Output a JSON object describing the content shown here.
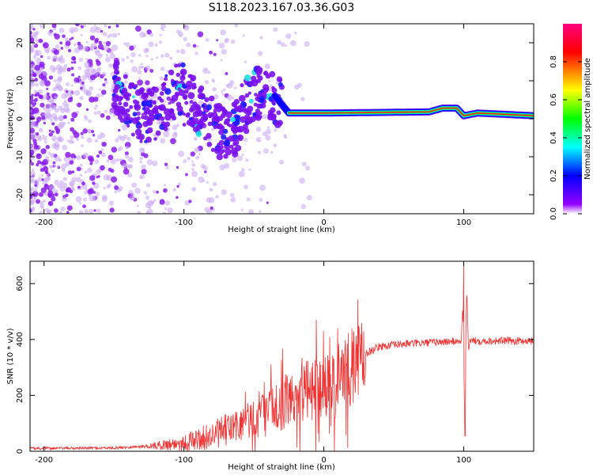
{
  "title": "S118.2023.167.03.36.G03",
  "chart_data": [
    {
      "type": "heatmap",
      "xlabel": "Height of straight line (km)",
      "ylabel": "Frequency (Hz)",
      "xlim": [
        -210,
        150
      ],
      "ylim": [
        -25,
        25
      ],
      "xticks": [
        -200,
        -100,
        0,
        100
      ],
      "yticks": [
        -20,
        -10,
        0,
        10,
        20
      ],
      "colorbar": {
        "label": "Normalized spectral amplitude",
        "range": [
          0,
          1
        ],
        "ticks": [
          "0.0",
          "0.2",
          "0.4",
          "0.6",
          "0.8"
        ],
        "tick_values": [
          0,
          0.2,
          0.4,
          0.6,
          0.8
        ],
        "colors": [
          "#ffffff",
          "#9400ff",
          "#0000ff",
          "#00ffff",
          "#00ff00",
          "#ffff00",
          "#ff0000",
          "#ff0080"
        ]
      },
      "tone_track": [
        {
          "x": -35,
          "y": 6
        },
        {
          "x": -25,
          "y": 1.5
        },
        {
          "x": 0,
          "y": 1.5
        },
        {
          "x": 75,
          "y": 1.8
        },
        {
          "x": 85,
          "y": 2.8
        },
        {
          "x": 95,
          "y": 2.8
        },
        {
          "x": 100,
          "y": 0.8
        },
        {
          "x": 110,
          "y": 1.5
        },
        {
          "x": 150,
          "y": 0.8
        }
      ]
    },
    {
      "type": "line",
      "xlabel": "Height of straight line (km)",
      "ylabel": "SNR (10 * v/v)",
      "xlim": [
        -210,
        150
      ],
      "ylim": [
        0,
        680
      ],
      "xticks": [
        -200,
        -100,
        0,
        100
      ],
      "yticks": [
        0,
        200,
        400,
        600
      ],
      "color": "#ee3333",
      "trend": [
        {
          "x": -210,
          "y": 10
        },
        {
          "x": -150,
          "y": 12
        },
        {
          "x": -120,
          "y": 20
        },
        {
          "x": -100,
          "y": 30
        },
        {
          "x": -80,
          "y": 55
        },
        {
          "x": -60,
          "y": 95
        },
        {
          "x": -40,
          "y": 140
        },
        {
          "x": -20,
          "y": 200
        },
        {
          "x": 0,
          "y": 240
        },
        {
          "x": 10,
          "y": 260
        },
        {
          "x": 20,
          "y": 300
        },
        {
          "x": 30,
          "y": 350
        },
        {
          "x": 40,
          "y": 375
        },
        {
          "x": 60,
          "y": 385
        },
        {
          "x": 80,
          "y": 390
        },
        {
          "x": 100,
          "y": 395
        },
        {
          "x": 150,
          "y": 395
        }
      ],
      "spikes": [
        {
          "x": 100,
          "y": 680
        },
        {
          "x": 101,
          "y": 55
        },
        {
          "x": 10,
          "y": 440
        },
        {
          "x": 8,
          "y": 120
        }
      ]
    }
  ]
}
